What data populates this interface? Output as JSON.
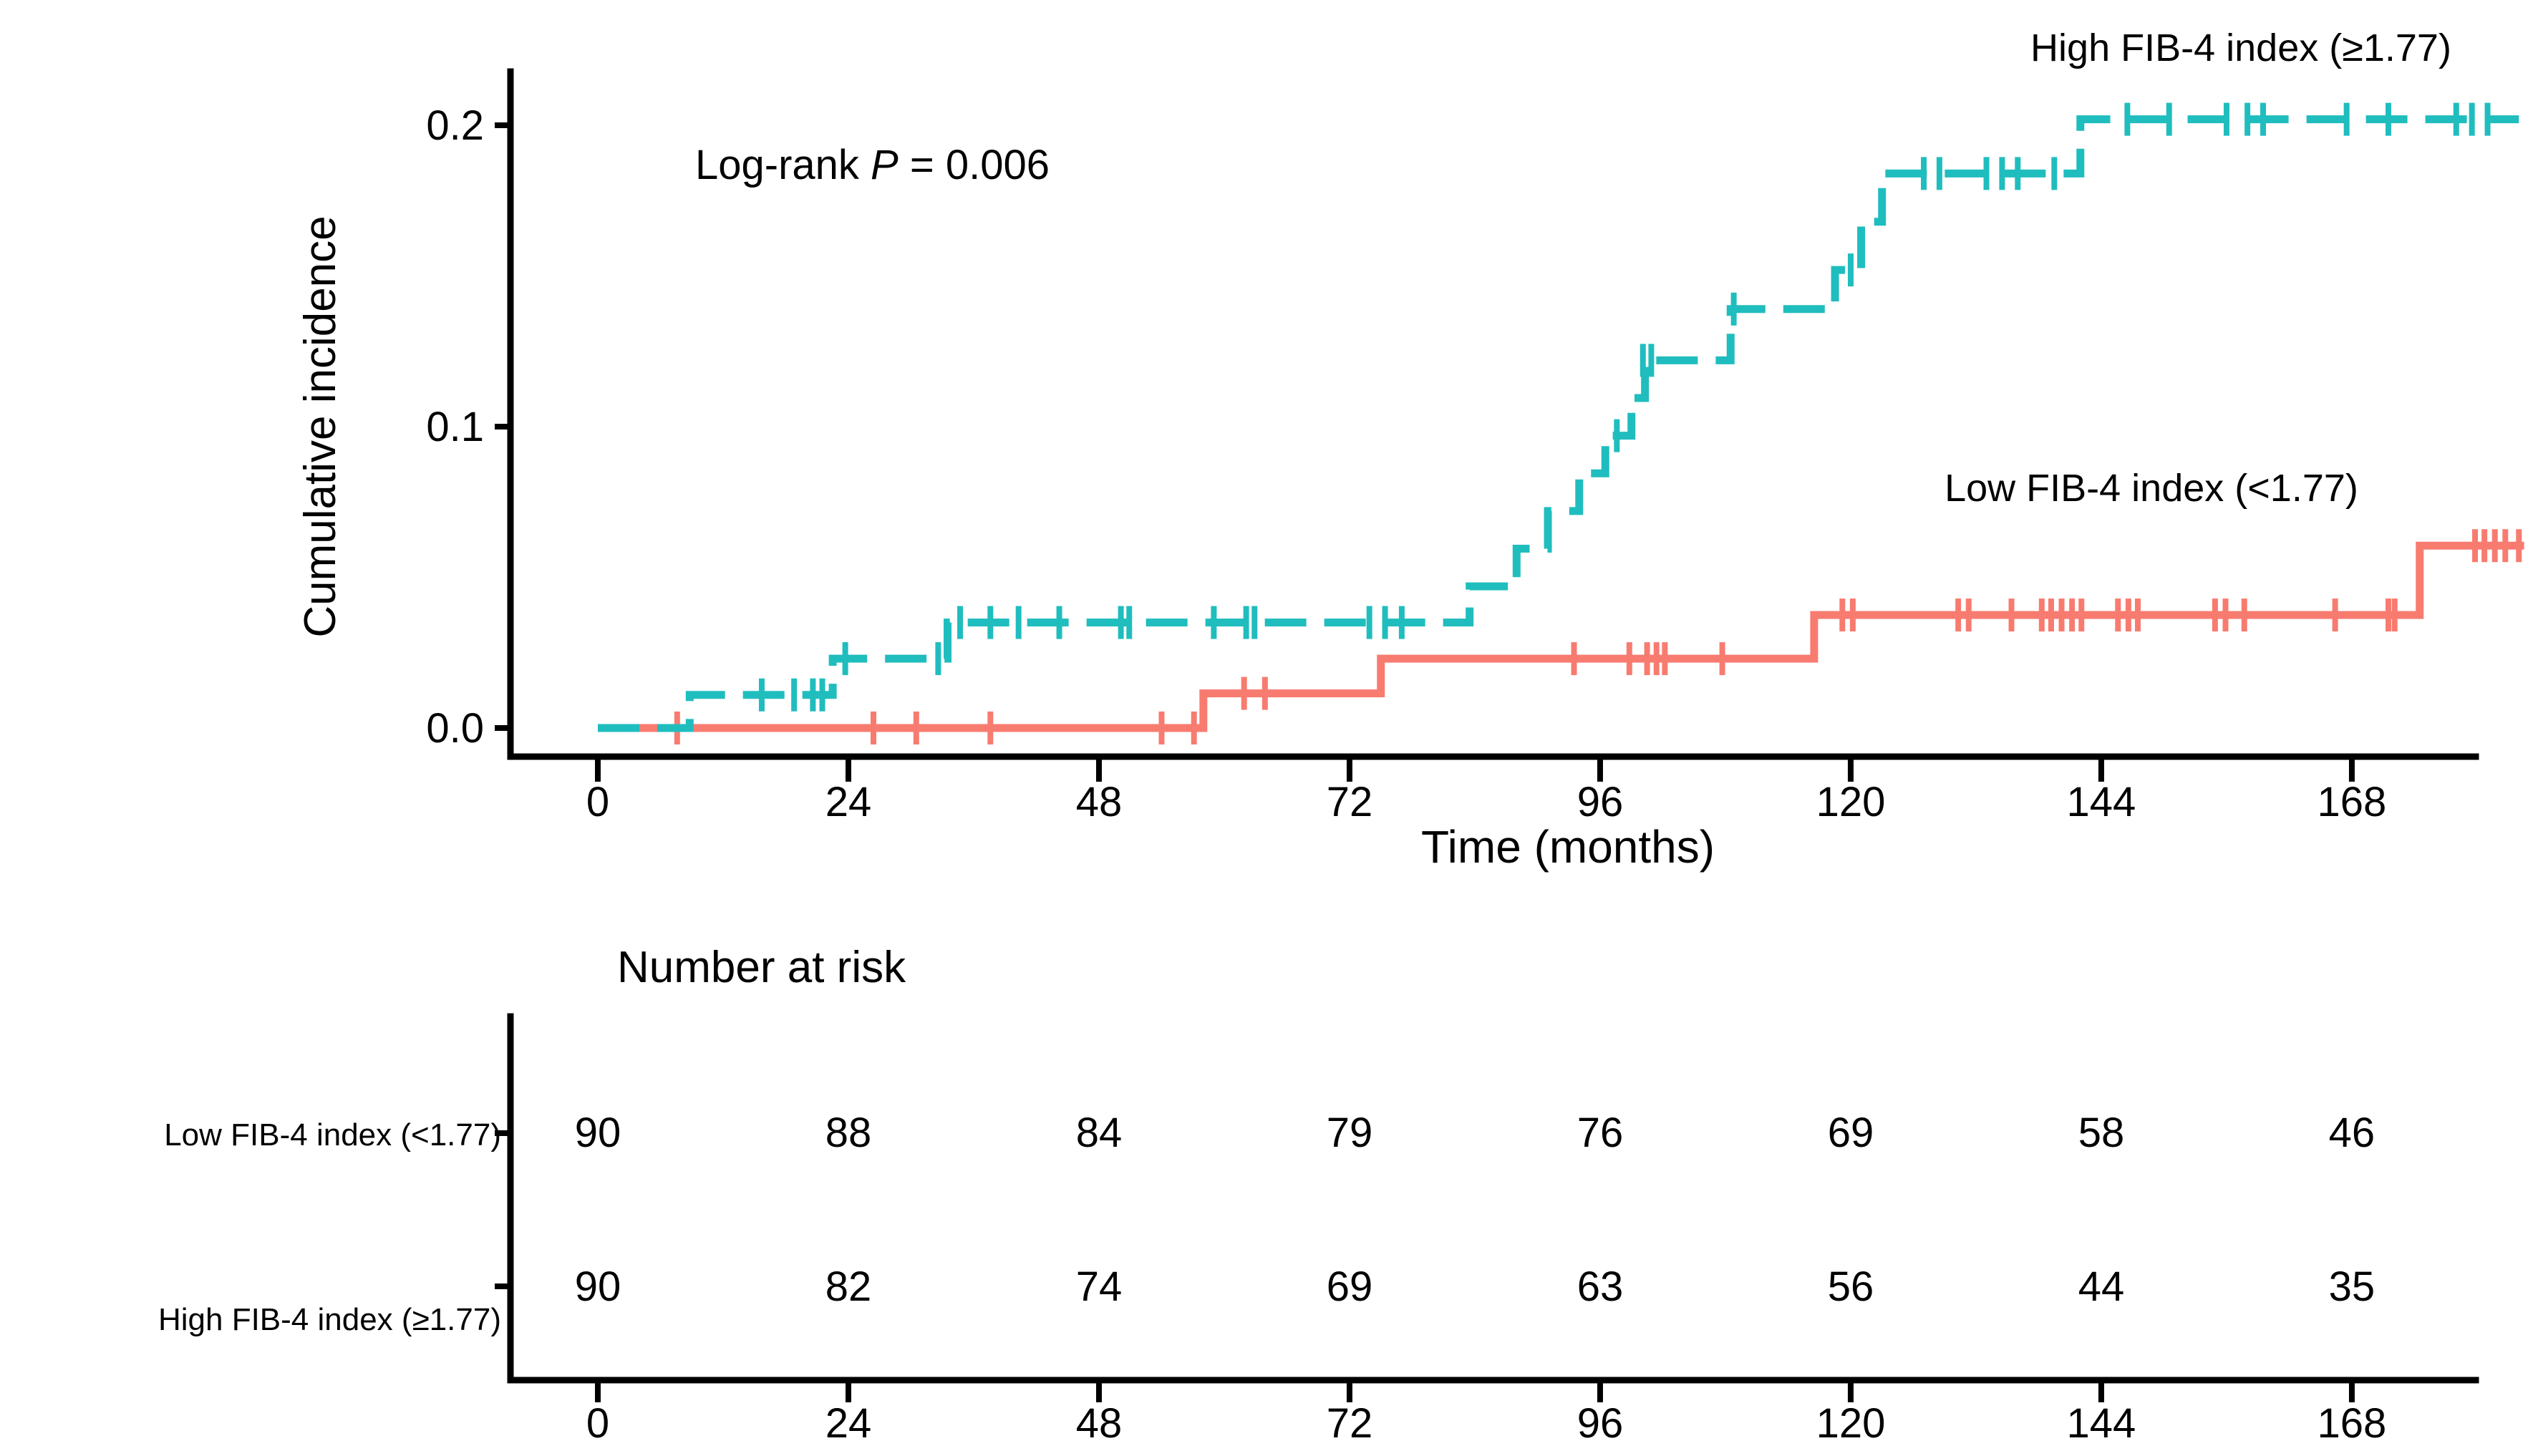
{
  "chart_data": {
    "type": "line",
    "variant": "kaplan-meier-cumulative-incidence-step-curves",
    "title": "",
    "xlabel": "Time (months)",
    "ylabel": "Cumulative incidence",
    "xlim": [
      0,
      185
    ],
    "ylim": [
      0,
      0.21
    ],
    "grid": "off",
    "legend_position": "labels-inline-on-plot",
    "xticks": [
      0,
      24,
      48,
      72,
      96,
      120,
      144,
      168
    ],
    "yticks": [
      {
        "label": "0.0",
        "value": 0.0
      },
      {
        "label": "0.1",
        "value": 0.1
      },
      {
        "label": "0.2",
        "value": 0.2
      }
    ],
    "annotation_parts": [
      "Log-rank ",
      "P",
      " = 0.006"
    ],
    "series": [
      {
        "name": "High FIB-4 index (≥1.77)",
        "color": "#20bdbe",
        "style": "dashed",
        "end_time": 184,
        "steps": [
          [
            0,
            0
          ],
          [
            8.8,
            0.011
          ],
          [
            22.5,
            0.023
          ],
          [
            33.5,
            0.035
          ],
          [
            83.5,
            0.047
          ],
          [
            88,
            0.0595
          ],
          [
            91,
            0.072
          ],
          [
            94,
            0.0845
          ],
          [
            96.5,
            0.097
          ],
          [
            99,
            0.1095
          ],
          [
            100.3,
            0.122
          ],
          [
            108.5,
            0.139
          ],
          [
            118.5,
            0.152
          ],
          [
            121,
            0.168
          ],
          [
            123,
            0.184
          ],
          [
            142,
            0.202
          ]
        ],
        "censors": [
          [
            15.7,
            0.011
          ],
          [
            18.8,
            0.011
          ],
          [
            20.6,
            0.011
          ],
          [
            21.5,
            0.011
          ],
          [
            23.7,
            0.023
          ],
          [
            32.6,
            0.023
          ],
          [
            34.7,
            0.035
          ],
          [
            37.6,
            0.035
          ],
          [
            40.3,
            0.035
          ],
          [
            44.2,
            0.035
          ],
          [
            50.1,
            0.035
          ],
          [
            50.9,
            0.035
          ],
          [
            59,
            0.035
          ],
          [
            62.1,
            0.035
          ],
          [
            62.9,
            0.035
          ],
          [
            73.9,
            0.035
          ],
          [
            75.4,
            0.035
          ],
          [
            77,
            0.035
          ],
          [
            97.6,
            0.097
          ],
          [
            100.1,
            0.122
          ],
          [
            100.9,
            0.122
          ],
          [
            108.8,
            0.139
          ],
          [
            120,
            0.152
          ],
          [
            127,
            0.184
          ],
          [
            128.5,
            0.184
          ],
          [
            133,
            0.184
          ],
          [
            134.5,
            0.184
          ],
          [
            136,
            0.184
          ],
          [
            139.5,
            0.184
          ],
          [
            146.5,
            0.202
          ],
          [
            150.5,
            0.202
          ],
          [
            156,
            0.202
          ],
          [
            158,
            0.202
          ],
          [
            159.5,
            0.202
          ],
          [
            167.5,
            0.202
          ],
          [
            171.5,
            0.202
          ],
          [
            178,
            0.202
          ],
          [
            179.5,
            0.202
          ],
          [
            181,
            0.202
          ]
        ]
      },
      {
        "name": "Low FIB-4 index (<1.77)",
        "color": "#f87b70",
        "style": "solid",
        "end_time": 184.5,
        "steps": [
          [
            0,
            0
          ],
          [
            58,
            0.0115
          ],
          [
            75,
            0.023
          ],
          [
            116.5,
            0.0375
          ],
          [
            174.5,
            0.0605
          ]
        ],
        "censors": [
          [
            7.6,
            0
          ],
          [
            26.4,
            0
          ],
          [
            30.5,
            0
          ],
          [
            37.6,
            0
          ],
          [
            54,
            0
          ],
          [
            57.1,
            0
          ],
          [
            61.9,
            0.0115
          ],
          [
            63.9,
            0.0115
          ],
          [
            93.5,
            0.023
          ],
          [
            98.8,
            0.023
          ],
          [
            100.5,
            0.023
          ],
          [
            101.4,
            0.023
          ],
          [
            102.2,
            0.023
          ],
          [
            107.7,
            0.023
          ],
          [
            119.2,
            0.0375
          ],
          [
            120.2,
            0.0375
          ],
          [
            130.3,
            0.0375
          ],
          [
            131.3,
            0.0375
          ],
          [
            135.4,
            0.0375
          ],
          [
            138.3,
            0.0375
          ],
          [
            139.2,
            0.0375
          ],
          [
            140.2,
            0.0375
          ],
          [
            141.2,
            0.0375
          ],
          [
            142.1,
            0.0375
          ],
          [
            145.6,
            0.0375
          ],
          [
            146.6,
            0.0375
          ],
          [
            147.5,
            0.0375
          ],
          [
            154.9,
            0.0375
          ],
          [
            155.9,
            0.0375
          ],
          [
            157.7,
            0.0375
          ],
          [
            166.4,
            0.0375
          ],
          [
            171.5,
            0.0375
          ],
          [
            172.1,
            0.0375
          ],
          [
            179.8,
            0.0605
          ],
          [
            180.7,
            0.0605
          ],
          [
            181.7,
            0.0605
          ],
          [
            182.7,
            0.0605
          ],
          [
            184,
            0.0605
          ]
        ]
      }
    ],
    "risk_table": {
      "title": "Number at risk",
      "time_points": [
        0,
        24,
        48,
        72,
        96,
        120,
        144,
        168
      ],
      "rows": [
        {
          "label": "Low FIB-4 index (<1.77)",
          "counts": [
            90,
            88,
            84,
            79,
            76,
            69,
            58,
            46
          ]
        },
        {
          "label": "High FIB-4 index (≥1.77)",
          "counts": [
            90,
            82,
            74,
            69,
            63,
            56,
            44,
            35
          ]
        }
      ]
    }
  }
}
